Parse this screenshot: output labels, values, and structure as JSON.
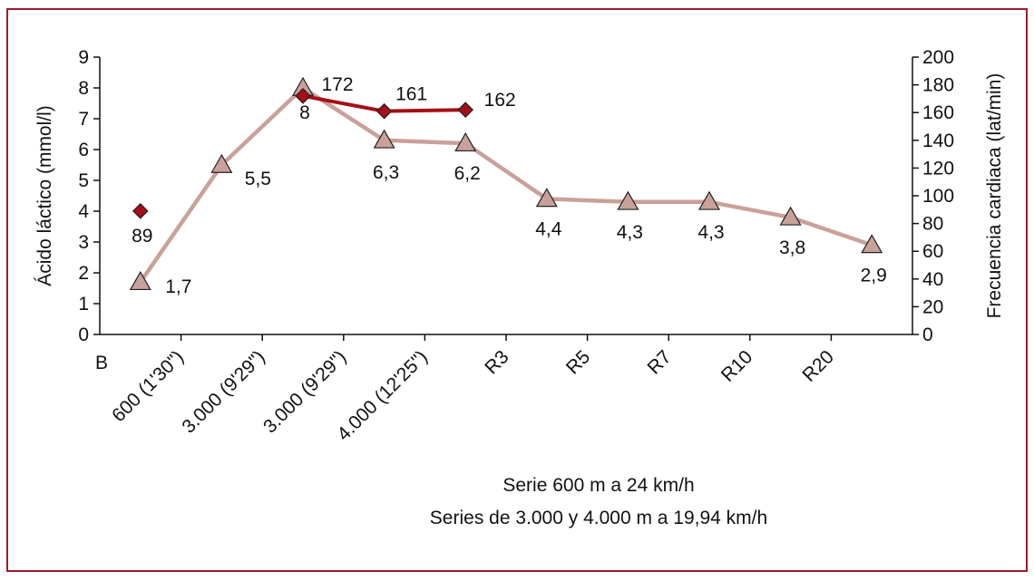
{
  "chart_data": {
    "type": "line",
    "categories": [
      "B",
      "600 (1'30\")",
      "3.000 (9'29\")",
      "3.000 (9'29\")",
      "4.000 (12'25\")",
      "R3",
      "R5",
      "R7",
      "R10",
      "R20"
    ],
    "y_left": {
      "label": "Ácido láctico (mmol/l)",
      "min": 0,
      "max": 9,
      "ticks": [
        0,
        1,
        2,
        3,
        4,
        5,
        6,
        7,
        8,
        9
      ]
    },
    "y_right": {
      "label": "Frecuencia cardiaca (lat/min)",
      "min": 0,
      "max": 200,
      "ticks": [
        0,
        20,
        40,
        60,
        80,
        100,
        120,
        140,
        160,
        180,
        200
      ]
    },
    "series": [
      {
        "axis": "left",
        "marker": "triangle",
        "color": "#c9a199",
        "x": [
          0.5,
          1.5,
          2.5,
          3.5,
          4.5,
          5.5,
          6.5,
          7.5,
          8.5,
          9.5
        ],
        "values": [
          1.7,
          5.5,
          8,
          6.3,
          6.2,
          4.4,
          4.3,
          4.3,
          3.8,
          2.9
        ],
        "labels": [
          "1,7",
          "5,5",
          "8",
          "6,3",
          "6,2",
          "4,4",
          "4,3",
          "4,3",
          "3,8",
          "2,9"
        ]
      },
      {
        "axis": "right",
        "marker": "diamond",
        "color": "#a50f15",
        "x": [
          0.5,
          2.5,
          3.5,
          4.5
        ],
        "values": [
          89,
          172,
          161,
          162
        ],
        "labels": [
          "89",
          "172",
          "161",
          "162"
        ],
        "connected_from_index": 1
      }
    ],
    "caption": [
      "Serie 600 m a 24 km/h",
      "Series de 3.000 y 4.000 m a 19,94 km/h"
    ],
    "grid": false
  }
}
